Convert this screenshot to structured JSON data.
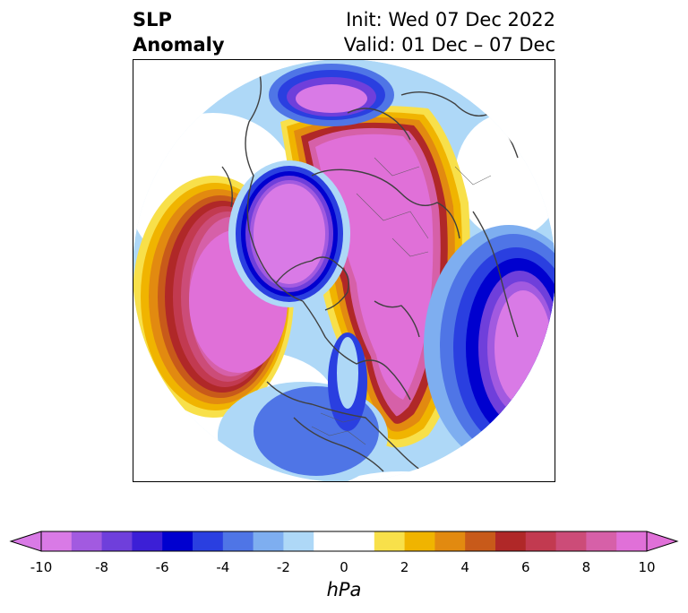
{
  "title": {
    "line1": "SLP",
    "line2": "Anomaly"
  },
  "subtitle": {
    "init": "Init: Wed 07 Dec 2022",
    "valid": "Valid: 01 Dec – 07 Dec"
  },
  "colorbar": {
    "units": "hPa",
    "ticks": [
      "-10",
      "-8",
      "-6",
      "-4",
      "-2",
      "0",
      "2",
      "4",
      "6",
      "8",
      "10"
    ],
    "colors": [
      "#d97ae6",
      "#a25ae0",
      "#6f3fdb",
      "#3c1fd6",
      "#0000cf",
      "#2a3fe0",
      "#4f75e6",
      "#7eaef0",
      "#aed8f7",
      "#ffffff",
      "#ffffff",
      "#f8e04a",
      "#f0b400",
      "#e28a10",
      "#c85a1a",
      "#b02828",
      "#c23a50",
      "#cc4c78",
      "#d660a8",
      "#e070d8"
    ]
  },
  "colors": {
    "positive_core": "#e070d8",
    "negative_core": "#d97ae6",
    "coastline": "#404040"
  }
}
